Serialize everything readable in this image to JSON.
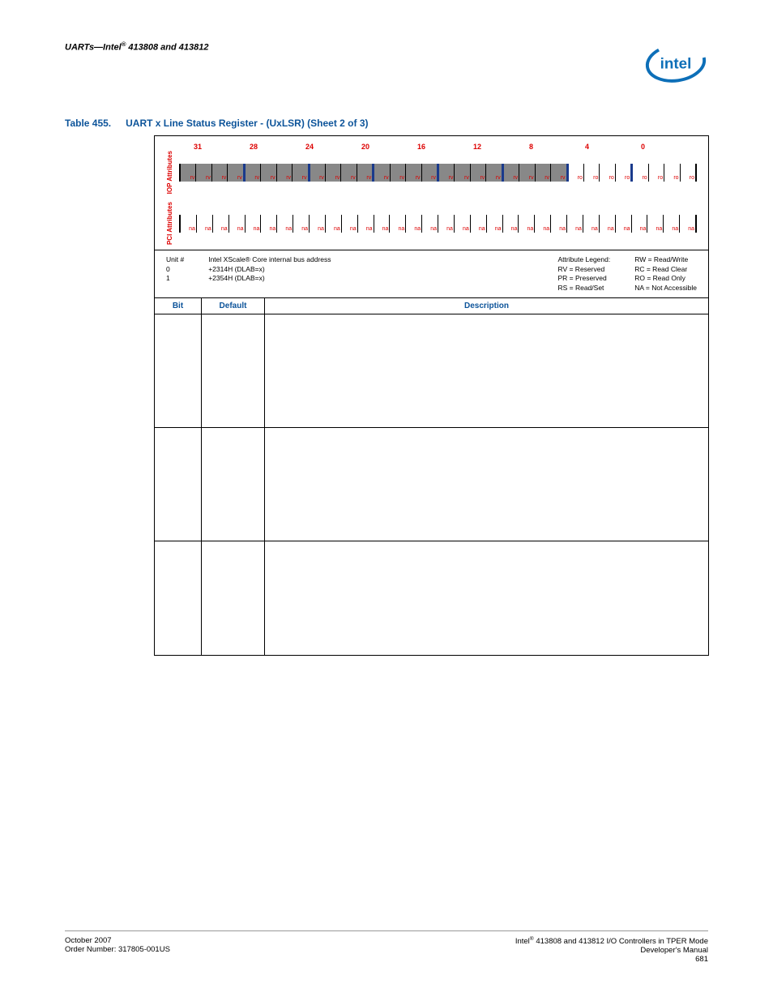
{
  "header": {
    "title_pre": "UARTs—Intel",
    "title_suf": " 413808 and 413812",
    "sup": "®"
  },
  "caption": {
    "num": "Table 455.",
    "title": "UART x Line Status Register - (UxLSR) (Sheet 2 of 3)"
  },
  "bitnums": [
    "31",
    "28",
    "24",
    "20",
    "16",
    "12",
    "8",
    "4",
    "0"
  ],
  "iop": {
    "label": "IOP\nAttributes",
    "bits": [
      {
        "t": "rv",
        "g": 1,
        "m": 0
      },
      {
        "t": "rv",
        "g": 1,
        "m": 0
      },
      {
        "t": "rv",
        "g": 1,
        "m": 0
      },
      {
        "t": "rv",
        "g": 1,
        "m": 1
      },
      {
        "t": "rv",
        "g": 1,
        "m": 0
      },
      {
        "t": "rv",
        "g": 1,
        "m": 0
      },
      {
        "t": "rv",
        "g": 1,
        "m": 0
      },
      {
        "t": "rv",
        "g": 1,
        "m": 1
      },
      {
        "t": "rv",
        "g": 1,
        "m": 0
      },
      {
        "t": "rv",
        "g": 1,
        "m": 0
      },
      {
        "t": "rv",
        "g": 1,
        "m": 0
      },
      {
        "t": "rv",
        "g": 1,
        "m": 1
      },
      {
        "t": "rv",
        "g": 1,
        "m": 0
      },
      {
        "t": "rv",
        "g": 1,
        "m": 0
      },
      {
        "t": "rv",
        "g": 1,
        "m": 0
      },
      {
        "t": "rv",
        "g": 1,
        "m": 1
      },
      {
        "t": "rv",
        "g": 1,
        "m": 0
      },
      {
        "t": "rv",
        "g": 1,
        "m": 0
      },
      {
        "t": "rv",
        "g": 1,
        "m": 0
      },
      {
        "t": "rv",
        "g": 1,
        "m": 1
      },
      {
        "t": "rv",
        "g": 1,
        "m": 0
      },
      {
        "t": "rv",
        "g": 1,
        "m": 0
      },
      {
        "t": "rv",
        "g": 1,
        "m": 0
      },
      {
        "t": "rv",
        "g": 1,
        "m": 1
      },
      {
        "t": "ro",
        "g": 0,
        "m": 0
      },
      {
        "t": "ro",
        "g": 0,
        "m": 0
      },
      {
        "t": "ro",
        "g": 0,
        "m": 0
      },
      {
        "t": "ro",
        "g": 0,
        "m": 1
      },
      {
        "t": "ro",
        "g": 0,
        "m": 0
      },
      {
        "t": "ro",
        "g": 0,
        "m": 0
      },
      {
        "t": "ro",
        "g": 0,
        "m": 0
      },
      {
        "t": "ro",
        "g": 0,
        "m": 0
      }
    ]
  },
  "pci": {
    "label": "PCI\nAttributes",
    "bits": [
      {
        "t": "na",
        "g": 0,
        "m": 0
      },
      {
        "t": "na",
        "g": 0,
        "m": 0
      },
      {
        "t": "na",
        "g": 0,
        "m": 0
      },
      {
        "t": "na",
        "g": 0,
        "m": 0
      },
      {
        "t": "na",
        "g": 0,
        "m": 0
      },
      {
        "t": "na",
        "g": 0,
        "m": 0
      },
      {
        "t": "na",
        "g": 0,
        "m": 0
      },
      {
        "t": "na",
        "g": 0,
        "m": 0
      },
      {
        "t": "na",
        "g": 0,
        "m": 0
      },
      {
        "t": "na",
        "g": 0,
        "m": 0
      },
      {
        "t": "na",
        "g": 0,
        "m": 0
      },
      {
        "t": "na",
        "g": 0,
        "m": 0
      },
      {
        "t": "na",
        "g": 0,
        "m": 0
      },
      {
        "t": "na",
        "g": 0,
        "m": 0
      },
      {
        "t": "na",
        "g": 0,
        "m": 0
      },
      {
        "t": "na",
        "g": 0,
        "m": 0
      },
      {
        "t": "na",
        "g": 0,
        "m": 0
      },
      {
        "t": "na",
        "g": 0,
        "m": 0
      },
      {
        "t": "na",
        "g": 0,
        "m": 0
      },
      {
        "t": "na",
        "g": 0,
        "m": 0
      },
      {
        "t": "na",
        "g": 0,
        "m": 0
      },
      {
        "t": "na",
        "g": 0,
        "m": 0
      },
      {
        "t": "na",
        "g": 0,
        "m": 0
      },
      {
        "t": "na",
        "g": 0,
        "m": 0
      },
      {
        "t": "na",
        "g": 0,
        "m": 0
      },
      {
        "t": "na",
        "g": 0,
        "m": 0
      },
      {
        "t": "na",
        "g": 0,
        "m": 0
      },
      {
        "t": "na",
        "g": 0,
        "m": 0
      },
      {
        "t": "na",
        "g": 0,
        "m": 0
      },
      {
        "t": "na",
        "g": 0,
        "m": 0
      },
      {
        "t": "na",
        "g": 0,
        "m": 0
      },
      {
        "t": "na",
        "g": 0,
        "m": 0
      }
    ]
  },
  "info": {
    "unit": {
      "h": "Unit #",
      "l1": "0",
      "l2": "1"
    },
    "addr": {
      "h": "Intel XScale® Core internal bus address",
      "l1": "+2314H (DLAB=x)",
      "l2": "+2354H (DLAB=x)"
    },
    "legend": {
      "h": "Attribute Legend:",
      "l1": "RV = Reserved",
      "l2": "PR = Preserved",
      "l3": "RS = Read/Set"
    },
    "rw": {
      "l0": "RW = Read/Write",
      "l1": "RC = Read Clear",
      "l2": "RO = Read Only",
      "l3": "NA = Not Accessible"
    }
  },
  "cols": {
    "bit": "Bit",
    "def": "Default",
    "desc": "Description"
  },
  "footer": {
    "left1": "October 2007",
    "left2": "Order Number: 317805-001US",
    "right1_pre": "Intel",
    "right1_suf": " 413808 and 413812 I/O Controllers in TPER Mode",
    "sup": "®",
    "right2": "Developer's Manual",
    "right3": "681"
  },
  "logo": {
    "swoop": "#0d6fb8",
    "text": "#0d6fb8"
  }
}
